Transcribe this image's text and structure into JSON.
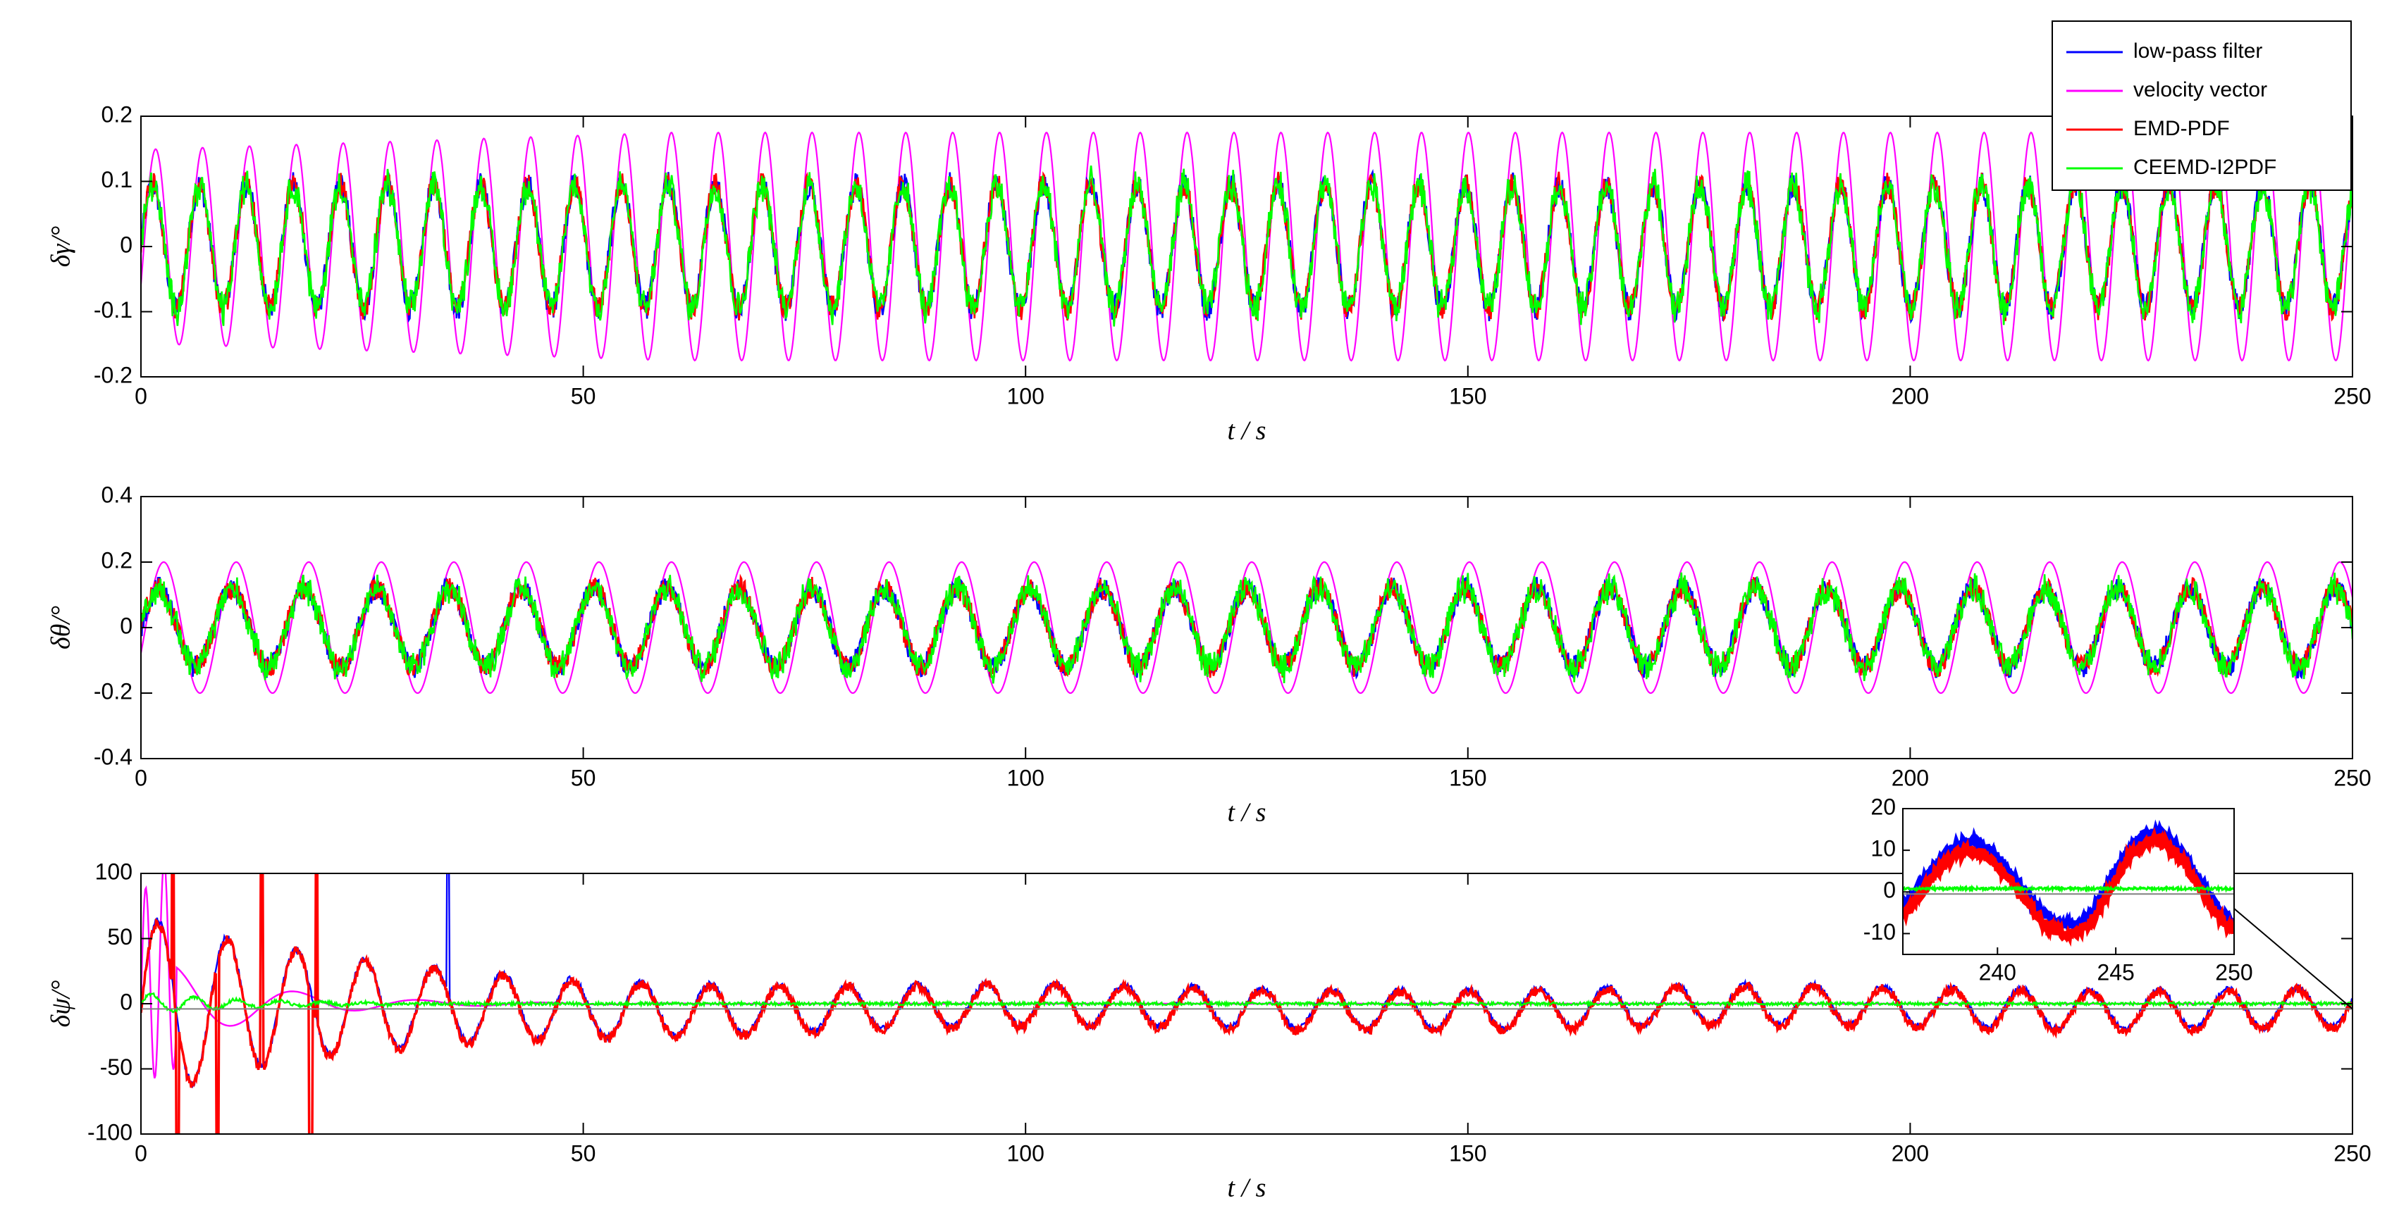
{
  "chart_data": [
    {
      "id": "y",
      "type": "line",
      "ylabel": "δγ/°",
      "xlabel": "t / s",
      "xlim": [
        0,
        250
      ],
      "ylim": [
        -0.2,
        0.2
      ],
      "xticks": [
        "0",
        "50",
        "100",
        "150",
        "200",
        "250"
      ],
      "yticks": [
        "-0.2",
        "-0.1",
        "0",
        "0.1",
        "0.2"
      ],
      "grid": false,
      "series": [
        {
          "name": "low-pass filter",
          "color": "#0000ff",
          "period_s": 5.3,
          "amplitude": 0.095
        },
        {
          "name": "velocity vector",
          "color": "#ff00ff",
          "period_s": 5.3,
          "amplitude": 0.175
        },
        {
          "name": "EMD-PDF",
          "color": "#ff0000",
          "period_s": 5.3,
          "amplitude": 0.095
        },
        {
          "name": "CEEMD-I2PDF",
          "color": "#00ff00",
          "period_s": 5.3,
          "amplitude": 0.095
        }
      ]
    },
    {
      "id": "theta",
      "type": "line",
      "ylabel": "δθ/°",
      "xlabel": "t / s",
      "xlim": [
        0,
        250
      ],
      "ylim": [
        -0.4,
        0.4
      ],
      "xticks": [
        "0",
        "50",
        "100",
        "150",
        "200",
        "250"
      ],
      "yticks": [
        "-0.4",
        "-0.2",
        "0",
        "0.2",
        "0.4"
      ],
      "grid": false,
      "series": [
        {
          "name": "low-pass filter",
          "color": "#0000ff",
          "period_s": 8.2,
          "amplitude": 0.12
        },
        {
          "name": "velocity vector",
          "color": "#ff00ff",
          "period_s": 8.2,
          "amplitude": 0.2
        },
        {
          "name": "EMD-PDF",
          "color": "#ff0000",
          "period_s": 8.2,
          "amplitude": 0.12
        },
        {
          "name": "CEEMD-I2PDF",
          "color": "#00ff00",
          "period_s": 8.2,
          "amplitude": 0.12
        }
      ]
    },
    {
      "id": "psi",
      "type": "line",
      "ylabel": "δψ/°",
      "xlabel": "t / s",
      "xlim": [
        0,
        250
      ],
      "ylim": [
        -100,
        100
      ],
      "xticks": [
        "0",
        "50",
        "100",
        "150",
        "200",
        "250"
      ],
      "yticks": [
        "-100",
        "-50",
        "0",
        "50",
        "100"
      ],
      "grid": false,
      "series": [
        {
          "name": "low-pass filter",
          "color": "#0000ff"
        },
        {
          "name": "velocity vector",
          "color": "#ff00ff"
        },
        {
          "name": "EMD-PDF",
          "color": "#ff0000"
        },
        {
          "name": "CEEMD-I2PDF",
          "color": "#00ff00"
        }
      ],
      "inset": {
        "xlim": [
          236,
          250
        ],
        "ylim": [
          -15,
          20
        ],
        "xticks": [
          "240",
          "245",
          "250"
        ],
        "yticks": [
          "-10",
          "0",
          "10",
          "20"
        ]
      }
    }
  ],
  "legend": {
    "placement": "top-right",
    "entries": [
      {
        "label": "low-pass filter",
        "color": "#0000ff"
      },
      {
        "label": "velocity vector",
        "color": "#ff00ff"
      },
      {
        "label": "EMD-PDF",
        "color": "#ff0000"
      },
      {
        "label": "CEEMD-I2PDF",
        "color": "#00ff00"
      }
    ]
  }
}
